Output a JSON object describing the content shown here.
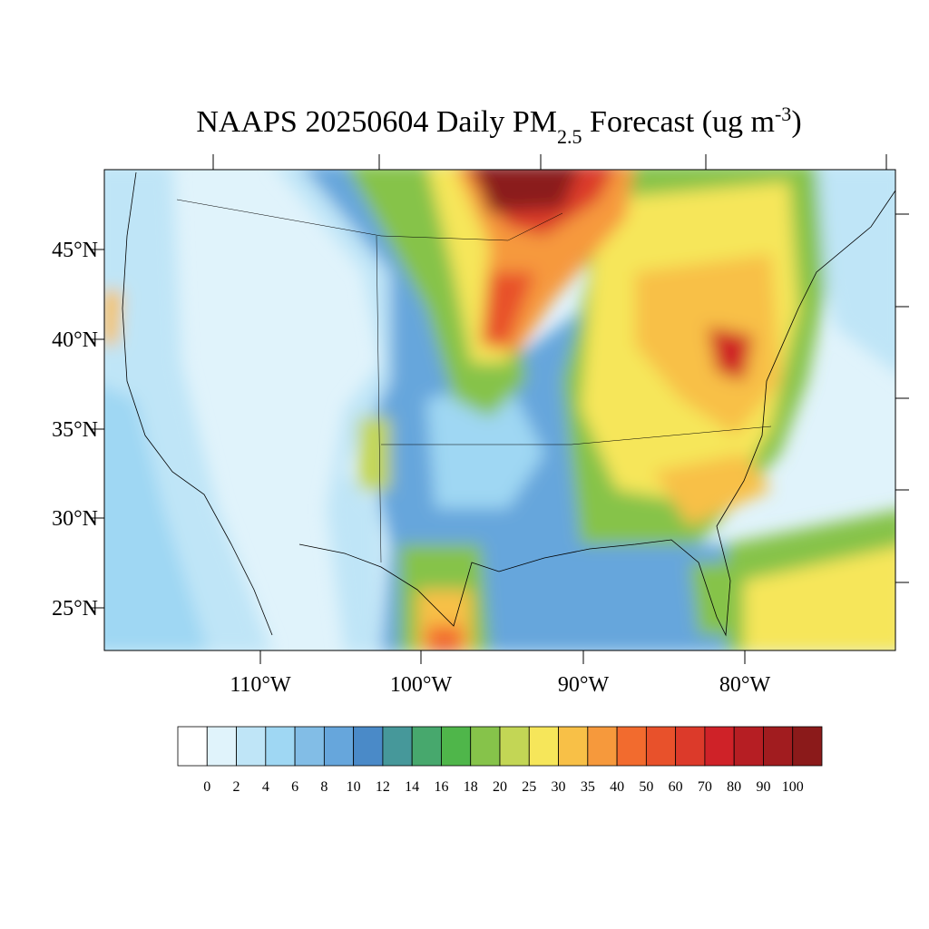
{
  "title": {
    "main": "NAAPS 20250604 Daily PM",
    "sub": "2.5",
    "rest": " Forecast (ug m",
    "sup": "-3",
    "end": ")"
  },
  "lat_labels": [
    "45°N",
    "40°N",
    "35°N",
    "30°N",
    "25°N"
  ],
  "lon_labels": [
    "110°W",
    "100°W",
    "90°W",
    "80°W"
  ],
  "colorbar": {
    "colors": [
      "#ffffff",
      "#e0f3fb",
      "#bfe5f7",
      "#9fd7f3",
      "#82bde6",
      "#66a6dc",
      "#4a8ac8",
      "#46989a",
      "#47a86d",
      "#4fb64a",
      "#86c34a",
      "#c3d655",
      "#f6e65a",
      "#f8c047",
      "#f6993c",
      "#f26b2e",
      "#e8512b",
      "#dc3a2a",
      "#cf2228",
      "#b61e23",
      "#a11c1f",
      "#8b1a1a"
    ],
    "labels": [
      0,
      2,
      4,
      6,
      8,
      10,
      12,
      14,
      16,
      18,
      20,
      25,
      30,
      35,
      40,
      50,
      60,
      70,
      80,
      90,
      100
    ]
  }
}
